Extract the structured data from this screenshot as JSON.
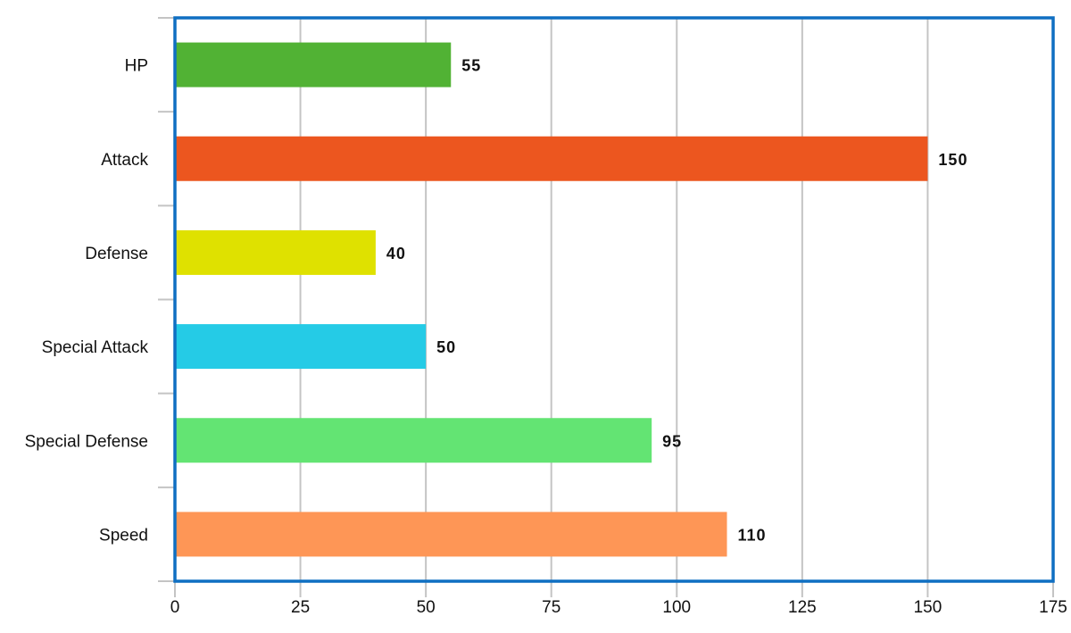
{
  "chart_data": {
    "type": "bar",
    "orientation": "horizontal",
    "categories": [
      "HP",
      "Attack",
      "Defense",
      "Special Attack",
      "Special Defense",
      "Speed"
    ],
    "values": [
      55,
      150,
      40,
      50,
      95,
      110
    ],
    "colors": [
      "#51b234",
      "#ec561f",
      "#dfe100",
      "#25cbe6",
      "#63e473",
      "#fe9656"
    ],
    "xlim": [
      0,
      175
    ],
    "xticks": [
      0,
      25,
      50,
      75,
      100,
      125,
      150,
      175
    ],
    "grid": true,
    "data_labels": true,
    "frame_color": "#0f6fc2"
  }
}
